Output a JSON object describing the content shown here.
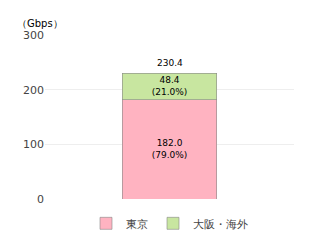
{
  "chart_data": {
    "type": "bar",
    "stacked": true,
    "categories": [
      null
    ],
    "series": [
      {
        "name": "東京",
        "color": "#FFB3C1",
        "values": [
          182.0
        ],
        "value_labels": [
          "182.0\n(79.0%)"
        ]
      },
      {
        "name": "大阪・海外",
        "color": "#C8E6A0",
        "values": [
          48.4
        ],
        "value_labels": [
          "48.4\n(21.0%)"
        ]
      }
    ],
    "totals": [
      230.4
    ],
    "ylabel": "（Gbps）",
    "ylim": [
      0,
      300
    ],
    "yticks": [
      0,
      100,
      200,
      300
    ],
    "grid": true,
    "legend": "bottom",
    "data_labels": true,
    "tick_labels": "y"
  }
}
